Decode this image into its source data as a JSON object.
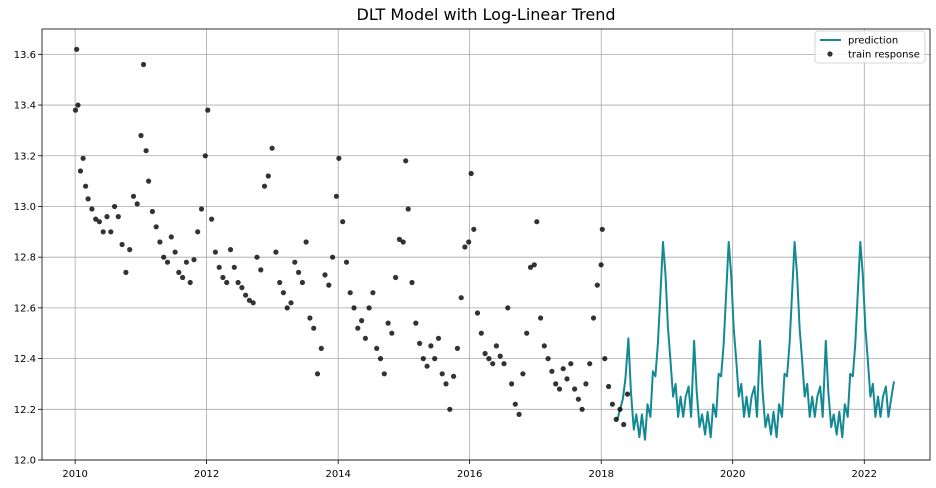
{
  "chart_data": {
    "type": "line",
    "title": "DLT Model with Log-Linear Trend",
    "xlabel": "",
    "ylabel": "",
    "x_type": "date",
    "xlim": [
      "2009-07-01",
      "2023-01-01"
    ],
    "ylim": [
      12.0,
      13.7
    ],
    "x_ticks": [
      "2010",
      "2012",
      "2014",
      "2016",
      "2018",
      "2020",
      "2022"
    ],
    "y_ticks": [
      "12.0",
      "12.2",
      "12.4",
      "12.6",
      "12.8",
      "13.0",
      "13.2",
      "13.4",
      "13.6"
    ],
    "grid": true,
    "legend_position": "top-right",
    "series": [
      {
        "name": "prediction",
        "type": "line",
        "color": "#138a93",
        "points": [
          [
            "2018-04-01",
            12.16
          ],
          [
            "2018-05-01",
            12.24
          ],
          [
            "2018-05-15",
            12.32
          ],
          [
            "2018-06-01",
            12.48
          ],
          [
            "2018-06-15",
            12.27
          ],
          [
            "2018-07-01",
            12.12
          ],
          [
            "2018-07-15",
            12.18
          ],
          [
            "2018-08-01",
            12.09
          ],
          [
            "2018-08-15",
            12.18
          ],
          [
            "2018-09-01",
            12.08
          ],
          [
            "2018-09-15",
            12.22
          ],
          [
            "2018-10-01",
            12.17
          ],
          [
            "2018-10-15",
            12.35
          ],
          [
            "2018-10-29",
            12.33
          ],
          [
            "2018-11-12",
            12.46
          ],
          [
            "2018-11-26",
            12.66
          ],
          [
            "2018-12-10",
            12.86
          ],
          [
            "2018-12-24",
            12.73
          ],
          [
            "2019-01-07",
            12.52
          ],
          [
            "2019-01-21",
            12.39
          ],
          [
            "2019-02-04",
            12.25
          ],
          [
            "2019-02-18",
            12.3
          ],
          [
            "2019-03-04",
            12.17
          ],
          [
            "2019-03-18",
            12.25
          ],
          [
            "2019-04-01",
            12.17
          ],
          [
            "2019-04-15",
            12.25
          ],
          [
            "2019-05-01",
            12.29
          ],
          [
            "2019-05-15",
            12.17
          ],
          [
            "2019-06-01",
            12.47
          ],
          [
            "2019-06-15",
            12.27
          ],
          [
            "2019-07-01",
            12.13
          ],
          [
            "2019-07-15",
            12.18
          ],
          [
            "2019-08-01",
            12.1
          ],
          [
            "2019-08-15",
            12.19
          ],
          [
            "2019-09-01",
            12.09
          ],
          [
            "2019-09-15",
            12.22
          ],
          [
            "2019-10-01",
            12.17
          ],
          [
            "2019-10-15",
            12.34
          ],
          [
            "2019-10-29",
            12.33
          ],
          [
            "2019-11-12",
            12.46
          ],
          [
            "2019-11-26",
            12.66
          ],
          [
            "2019-12-10",
            12.86
          ],
          [
            "2019-12-24",
            12.73
          ],
          [
            "2020-01-07",
            12.52
          ],
          [
            "2020-01-21",
            12.39
          ],
          [
            "2020-02-04",
            12.25
          ],
          [
            "2020-02-18",
            12.3
          ],
          [
            "2020-03-04",
            12.17
          ],
          [
            "2020-03-18",
            12.25
          ],
          [
            "2020-04-01",
            12.17
          ],
          [
            "2020-04-15",
            12.25
          ],
          [
            "2020-05-01",
            12.29
          ],
          [
            "2020-05-15",
            12.17
          ],
          [
            "2020-06-01",
            12.47
          ],
          [
            "2020-06-15",
            12.27
          ],
          [
            "2020-07-01",
            12.13
          ],
          [
            "2020-07-15",
            12.18
          ],
          [
            "2020-08-01",
            12.1
          ],
          [
            "2020-08-15",
            12.19
          ],
          [
            "2020-09-01",
            12.09
          ],
          [
            "2020-09-15",
            12.22
          ],
          [
            "2020-10-01",
            12.17
          ],
          [
            "2020-10-15",
            12.34
          ],
          [
            "2020-10-29",
            12.33
          ],
          [
            "2020-11-12",
            12.46
          ],
          [
            "2020-11-26",
            12.66
          ],
          [
            "2020-12-10",
            12.86
          ],
          [
            "2020-12-24",
            12.73
          ],
          [
            "2021-01-07",
            12.52
          ],
          [
            "2021-01-21",
            12.39
          ],
          [
            "2021-02-04",
            12.25
          ],
          [
            "2021-02-18",
            12.3
          ],
          [
            "2021-03-04",
            12.17
          ],
          [
            "2021-03-18",
            12.25
          ],
          [
            "2021-04-01",
            12.17
          ],
          [
            "2021-04-15",
            12.25
          ],
          [
            "2021-05-01",
            12.29
          ],
          [
            "2021-05-15",
            12.17
          ],
          [
            "2021-06-01",
            12.47
          ],
          [
            "2021-06-15",
            12.27
          ],
          [
            "2021-07-01",
            12.13
          ],
          [
            "2021-07-15",
            12.18
          ],
          [
            "2021-08-01",
            12.1
          ],
          [
            "2021-08-15",
            12.19
          ],
          [
            "2021-09-01",
            12.09
          ],
          [
            "2021-09-15",
            12.22
          ],
          [
            "2021-10-01",
            12.17
          ],
          [
            "2021-10-15",
            12.34
          ],
          [
            "2021-10-29",
            12.33
          ],
          [
            "2021-11-12",
            12.46
          ],
          [
            "2021-11-26",
            12.66
          ],
          [
            "2021-12-10",
            12.86
          ],
          [
            "2021-12-24",
            12.73
          ],
          [
            "2022-01-07",
            12.52
          ],
          [
            "2022-01-21",
            12.39
          ],
          [
            "2022-02-04",
            12.25
          ],
          [
            "2022-02-18",
            12.3
          ],
          [
            "2022-03-04",
            12.17
          ],
          [
            "2022-03-18",
            12.25
          ],
          [
            "2022-04-01",
            12.17
          ],
          [
            "2022-04-15",
            12.25
          ],
          [
            "2022-05-01",
            12.29
          ],
          [
            "2022-05-15",
            12.17
          ],
          [
            "2022-06-01",
            12.25
          ],
          [
            "2022-06-15",
            12.31
          ]
        ]
      },
      {
        "name": "train response",
        "type": "scatter",
        "color": "#000000",
        "points": [
          [
            "2010-01-03",
            13.38
          ],
          [
            "2010-01-10",
            13.62
          ],
          [
            "2010-01-17",
            13.4
          ],
          [
            "2010-01-31",
            13.14
          ],
          [
            "2010-02-14",
            13.19
          ],
          [
            "2010-02-28",
            13.08
          ],
          [
            "2010-03-14",
            13.03
          ],
          [
            "2010-04-04",
            12.99
          ],
          [
            "2010-04-25",
            12.95
          ],
          [
            "2010-05-16",
            12.94
          ],
          [
            "2010-06-06",
            12.9
          ],
          [
            "2010-06-27",
            12.96
          ],
          [
            "2010-07-18",
            12.9
          ],
          [
            "2010-08-08",
            13.0
          ],
          [
            "2010-08-29",
            12.96
          ],
          [
            "2010-09-19",
            12.85
          ],
          [
            "2010-10-10",
            12.74
          ],
          [
            "2010-10-31",
            12.83
          ],
          [
            "2010-11-21",
            13.04
          ],
          [
            "2010-12-12",
            13.01
          ],
          [
            "2011-01-02",
            13.28
          ],
          [
            "2011-01-16",
            13.56
          ],
          [
            "2011-01-30",
            13.22
          ],
          [
            "2011-02-13",
            13.1
          ],
          [
            "2011-03-06",
            12.98
          ],
          [
            "2011-03-27",
            12.92
          ],
          [
            "2011-04-17",
            12.86
          ],
          [
            "2011-05-08",
            12.8
          ],
          [
            "2011-05-29",
            12.78
          ],
          [
            "2011-06-19",
            12.88
          ],
          [
            "2011-07-10",
            12.82
          ],
          [
            "2011-07-31",
            12.74
          ],
          [
            "2011-08-21",
            12.72
          ],
          [
            "2011-09-11",
            12.78
          ],
          [
            "2011-10-02",
            12.7
          ],
          [
            "2011-10-23",
            12.79
          ],
          [
            "2011-11-13",
            12.9
          ],
          [
            "2011-12-04",
            12.99
          ],
          [
            "2011-12-25",
            13.2
          ],
          [
            "2012-01-08",
            13.38
          ],
          [
            "2012-01-29",
            12.95
          ],
          [
            "2012-02-19",
            12.82
          ],
          [
            "2012-03-11",
            12.76
          ],
          [
            "2012-04-01",
            12.72
          ],
          [
            "2012-04-22",
            12.7
          ],
          [
            "2012-05-13",
            12.83
          ],
          [
            "2012-06-03",
            12.76
          ],
          [
            "2012-06-24",
            12.7
          ],
          [
            "2012-07-15",
            12.68
          ],
          [
            "2012-08-05",
            12.65
          ],
          [
            "2012-08-26",
            12.63
          ],
          [
            "2012-09-16",
            12.62
          ],
          [
            "2012-10-07",
            12.8
          ],
          [
            "2012-10-28",
            12.75
          ],
          [
            "2012-11-18",
            13.08
          ],
          [
            "2012-12-09",
            13.12
          ],
          [
            "2012-12-30",
            13.23
          ],
          [
            "2013-01-20",
            12.82
          ],
          [
            "2013-02-10",
            12.7
          ],
          [
            "2013-03-03",
            12.66
          ],
          [
            "2013-03-24",
            12.6
          ],
          [
            "2013-04-14",
            12.62
          ],
          [
            "2013-05-05",
            12.78
          ],
          [
            "2013-05-26",
            12.74
          ],
          [
            "2013-06-16",
            12.7
          ],
          [
            "2013-07-07",
            12.86
          ],
          [
            "2013-07-28",
            12.56
          ],
          [
            "2013-08-18",
            12.52
          ],
          [
            "2013-09-08",
            12.34
          ],
          [
            "2013-09-29",
            12.44
          ],
          [
            "2013-10-20",
            12.73
          ],
          [
            "2013-11-10",
            12.69
          ],
          [
            "2013-12-01",
            12.8
          ],
          [
            "2013-12-22",
            13.04
          ],
          [
            "2014-01-05",
            13.19
          ],
          [
            "2014-01-26",
            12.94
          ],
          [
            "2014-02-16",
            12.78
          ],
          [
            "2014-03-09",
            12.66
          ],
          [
            "2014-03-30",
            12.6
          ],
          [
            "2014-04-20",
            12.52
          ],
          [
            "2014-05-11",
            12.55
          ],
          [
            "2014-06-01",
            12.48
          ],
          [
            "2014-06-22",
            12.6
          ],
          [
            "2014-07-13",
            12.66
          ],
          [
            "2014-08-03",
            12.44
          ],
          [
            "2014-08-24",
            12.4
          ],
          [
            "2014-09-14",
            12.34
          ],
          [
            "2014-10-05",
            12.54
          ],
          [
            "2014-10-26",
            12.5
          ],
          [
            "2014-11-16",
            12.72
          ],
          [
            "2014-12-07",
            12.87
          ],
          [
            "2014-12-28",
            12.86
          ],
          [
            "2015-01-11",
            13.18
          ],
          [
            "2015-01-25",
            12.99
          ],
          [
            "2015-02-15",
            12.7
          ],
          [
            "2015-03-08",
            12.54
          ],
          [
            "2015-03-29",
            12.46
          ],
          [
            "2015-04-19",
            12.4
          ],
          [
            "2015-05-10",
            12.37
          ],
          [
            "2015-05-31",
            12.45
          ],
          [
            "2015-06-21",
            12.4
          ],
          [
            "2015-07-12",
            12.48
          ],
          [
            "2015-08-02",
            12.34
          ],
          [
            "2015-08-23",
            12.3
          ],
          [
            "2015-09-13",
            12.2
          ],
          [
            "2015-10-04",
            12.33
          ],
          [
            "2015-10-25",
            12.44
          ],
          [
            "2015-11-15",
            12.64
          ],
          [
            "2015-12-06",
            12.84
          ],
          [
            "2015-12-27",
            12.86
          ],
          [
            "2016-01-10",
            13.13
          ],
          [
            "2016-01-24",
            12.91
          ],
          [
            "2016-02-14",
            12.58
          ],
          [
            "2016-03-06",
            12.5
          ],
          [
            "2016-03-27",
            12.42
          ],
          [
            "2016-04-17",
            12.4
          ],
          [
            "2016-05-08",
            12.38
          ],
          [
            "2016-05-29",
            12.45
          ],
          [
            "2016-06-19",
            12.41
          ],
          [
            "2016-07-10",
            12.38
          ],
          [
            "2016-07-31",
            12.6
          ],
          [
            "2016-08-21",
            12.3
          ],
          [
            "2016-09-11",
            12.22
          ],
          [
            "2016-10-02",
            12.18
          ],
          [
            "2016-10-23",
            12.34
          ],
          [
            "2016-11-13",
            12.5
          ],
          [
            "2016-12-04",
            12.76
          ],
          [
            "2016-12-25",
            12.77
          ],
          [
            "2017-01-08",
            12.94
          ],
          [
            "2017-01-29",
            12.56
          ],
          [
            "2017-02-19",
            12.45
          ],
          [
            "2017-03-12",
            12.4
          ],
          [
            "2017-04-02",
            12.35
          ],
          [
            "2017-04-23",
            12.3
          ],
          [
            "2017-05-14",
            12.28
          ],
          [
            "2017-06-04",
            12.36
          ],
          [
            "2017-06-25",
            12.32
          ],
          [
            "2017-07-16",
            12.38
          ],
          [
            "2017-08-06",
            12.28
          ],
          [
            "2017-08-27",
            12.24
          ],
          [
            "2017-09-17",
            12.2
          ],
          [
            "2017-10-08",
            12.3
          ],
          [
            "2017-10-29",
            12.38
          ],
          [
            "2017-11-19",
            12.56
          ],
          [
            "2017-12-10",
            12.69
          ],
          [
            "2017-12-31",
            12.77
          ],
          [
            "2018-01-07",
            12.91
          ],
          [
            "2018-01-21",
            12.4
          ],
          [
            "2018-02-11",
            12.29
          ],
          [
            "2018-03-04",
            12.22
          ],
          [
            "2018-03-25",
            12.16
          ],
          [
            "2018-04-15",
            12.2
          ],
          [
            "2018-05-06",
            12.14
          ],
          [
            "2018-05-27",
            12.26
          ]
        ]
      }
    ]
  }
}
